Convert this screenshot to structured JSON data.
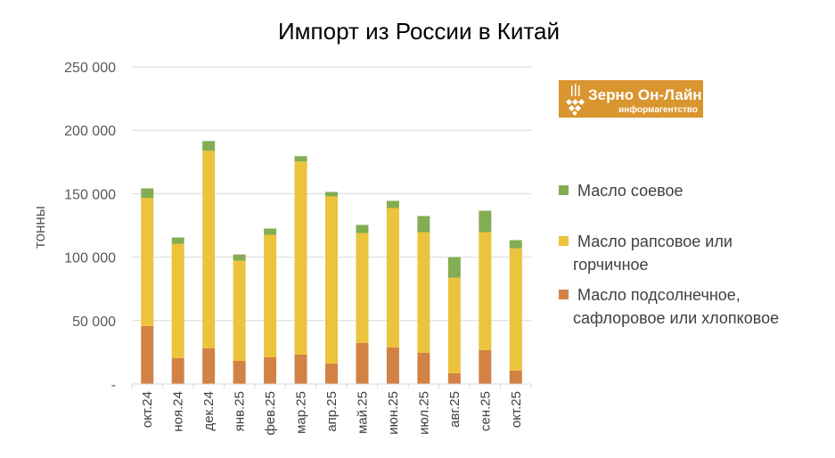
{
  "chart_data": {
    "type": "bar",
    "stacked": true,
    "title": "Импорт из России в Китай",
    "ylabel": "тонны",
    "xlabel": "",
    "ylim": [
      0,
      250000
    ],
    "yticks": [
      0,
      50000,
      100000,
      150000,
      200000,
      250000
    ],
    "ytick_labels": [
      "-",
      "50 000",
      "100 000",
      "150 000",
      "200 000",
      "250 000"
    ],
    "grid": true,
    "legend_position": "right",
    "categories": [
      "окт.24",
      "ноя.24",
      "дек.24",
      "янв.25",
      "фев.25",
      "мар.25",
      "апр.25",
      "май.25",
      "июн.25",
      "июл.25",
      "авг.25",
      "сен.25",
      "окт.25"
    ],
    "series": [
      {
        "name": "Масло подсолнечное, сафлоровое или хлопковое",
        "color": "#d28244",
        "values": [
          45800,
          20400,
          28200,
          18300,
          21100,
          23200,
          16200,
          32400,
          28900,
          24600,
          8500,
          26800,
          10600
        ]
      },
      {
        "name": "Масло рапсовое или горчичное",
        "color": "#ecc33c",
        "values": [
          100900,
          90200,
          155600,
          78900,
          96500,
          152200,
          131700,
          86600,
          109800,
          95100,
          75300,
          92900,
          96400
        ]
      },
      {
        "name": "Масло соевое",
        "color": "#83ad52",
        "values": [
          7500,
          4900,
          7700,
          4900,
          4900,
          4200,
          3500,
          6400,
          5700,
          12700,
          16200,
          16900,
          6400
        ]
      }
    ]
  },
  "legend": {
    "items": [
      {
        "lines": [
          "Масло соевое"
        ],
        "color": "#83ad52"
      },
      {
        "lines": [
          "Масло рапсовое или",
          "горчичное"
        ],
        "color": "#ecc33c"
      },
      {
        "lines": [
          "Масло подсолнечное,",
          "сафлоровое или хлопковое"
        ],
        "color": "#d28244"
      }
    ]
  },
  "logo": {
    "line1": "Зерно Он-Лайн",
    "line2": "информагентство",
    "color": "#d9952f"
  }
}
